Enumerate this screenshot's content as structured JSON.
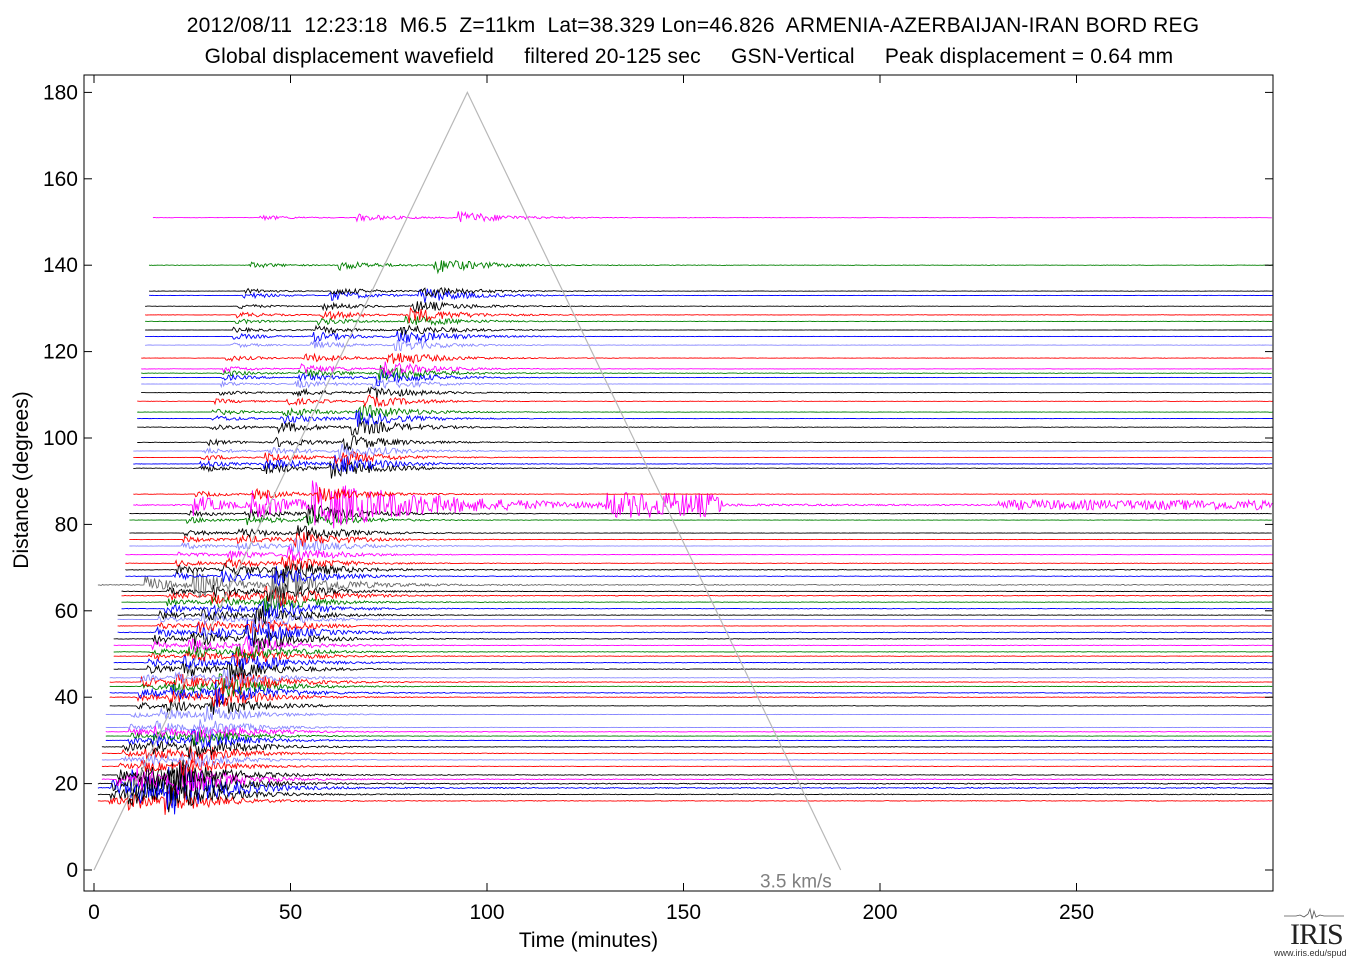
{
  "title_line1": "2012/08/11  12:23:18  M6.5  Z=11km  Lat=38.329 Lon=46.826  ARMENIA-AZERBAIJAN-IRAN BORD REG",
  "title_line2": "Global displacement wavefield     filtered 20-125 sec     GSN-Vertical     Peak displacement = 0.64 mm",
  "logo": {
    "word": "IRIS",
    "url": "www.iris.edu/spud"
  },
  "chart_data": {
    "type": "line",
    "xlabel": "Time (minutes)",
    "ylabel": "Distance (degrees)",
    "xlim": [
      -3,
      300
    ],
    "ylim": [
      -5,
      185
    ],
    "xticks": [
      0,
      50,
      100,
      150,
      200,
      250
    ],
    "yticks": [
      0,
      20,
      40,
      60,
      80,
      100,
      120,
      140,
      160,
      180
    ],
    "grid": false,
    "annotation": {
      "text": "3.5 km/s",
      "x": 200,
      "y": -2
    },
    "reference_line": {
      "label": "3.5 km/s",
      "points": [
        [
          0,
          0
        ],
        [
          95,
          180
        ],
        [
          190,
          0
        ]
      ]
    },
    "trace_colors": [
      "#000000",
      "#ff0000",
      "#0000ff",
      "#008000",
      "#ff00ff",
      "#8888ff",
      "#6a6a6a"
    ],
    "traces": [
      {
        "dist": 16,
        "color": "#ff0000",
        "start": 1,
        "amp": 0.8
      },
      {
        "dist": 17.5,
        "color": "#000000",
        "start": 1,
        "amp": 1.0
      },
      {
        "dist": 19,
        "color": "#0000ff",
        "start": 1,
        "amp": 1.5
      },
      {
        "dist": 20,
        "color": "#000000",
        "start": 1,
        "amp": 1.2
      },
      {
        "dist": 21,
        "color": "#ff00ff",
        "start": 2,
        "amp": 1.0
      },
      {
        "dist": 22,
        "color": "#000000",
        "start": 2,
        "amp": 0.9
      },
      {
        "dist": 24,
        "color": "#ff0000",
        "start": 2,
        "amp": 0.5
      },
      {
        "dist": 25.5,
        "color": "#8888ff",
        "start": 2,
        "amp": 0.5
      },
      {
        "dist": 27,
        "color": "#ff0000",
        "start": 2,
        "amp": 0.6
      },
      {
        "dist": 28.5,
        "color": "#000000",
        "start": 2,
        "amp": 0.7
      },
      {
        "dist": 30,
        "color": "#0000ff",
        "start": 3,
        "amp": 0.6
      },
      {
        "dist": 31,
        "color": "#008000",
        "start": 3,
        "amp": 0.5
      },
      {
        "dist": 32,
        "color": "#ff00ff",
        "start": 3,
        "amp": 0.6
      },
      {
        "dist": 33,
        "color": "#8888ff",
        "start": 3,
        "amp": 0.5
      },
      {
        "dist": 36,
        "color": "#8888ff",
        "start": 3,
        "amp": 0.5
      },
      {
        "dist": 38,
        "color": "#000000",
        "start": 4,
        "amp": 0.6
      },
      {
        "dist": 40,
        "color": "#ff0000",
        "start": 4,
        "amp": 0.6
      },
      {
        "dist": 41,
        "color": "#0000ff",
        "start": 4,
        "amp": 0.8
      },
      {
        "dist": 42.5,
        "color": "#008000",
        "start": 4,
        "amp": 0.7
      },
      {
        "dist": 43.5,
        "color": "#ff0000",
        "start": 4,
        "amp": 0.8
      },
      {
        "dist": 44.5,
        "color": "#8888ff",
        "start": 4,
        "amp": 0.5
      },
      {
        "dist": 46.5,
        "color": "#000000",
        "start": 5,
        "amp": 0.7
      },
      {
        "dist": 48,
        "color": "#0000ff",
        "start": 5,
        "amp": 0.7
      },
      {
        "dist": 49.5,
        "color": "#ff0000",
        "start": 5,
        "amp": 0.6
      },
      {
        "dist": 50.5,
        "color": "#008000",
        "start": 5,
        "amp": 0.6
      },
      {
        "dist": 52,
        "color": "#ff00ff",
        "start": 5,
        "amp": 0.6
      },
      {
        "dist": 53.5,
        "color": "#000000",
        "start": 5,
        "amp": 0.8
      },
      {
        "dist": 55,
        "color": "#0000ff",
        "start": 6,
        "amp": 0.8
      },
      {
        "dist": 56.5,
        "color": "#ff0000",
        "start": 6,
        "amp": 0.6
      },
      {
        "dist": 58,
        "color": "#8888ff",
        "start": 6,
        "amp": 0.5
      },
      {
        "dist": 59,
        "color": "#000000",
        "start": 6,
        "amp": 0.6
      },
      {
        "dist": 60.5,
        "color": "#0000ff",
        "start": 7,
        "amp": 0.7
      },
      {
        "dist": 62,
        "color": "#008000",
        "start": 7,
        "amp": 0.6
      },
      {
        "dist": 63.5,
        "color": "#ff0000",
        "start": 7,
        "amp": 0.8
      },
      {
        "dist": 64.5,
        "color": "#000000",
        "start": 7,
        "amp": 0.6
      },
      {
        "dist": 66,
        "color": "#6a6a6a",
        "start": 1,
        "amp": 1.3
      },
      {
        "dist": 68,
        "color": "#0000ff",
        "start": 8,
        "amp": 0.6
      },
      {
        "dist": 69.5,
        "color": "#000000",
        "start": 8,
        "amp": 0.7
      },
      {
        "dist": 71,
        "color": "#ff0000",
        "start": 8,
        "amp": 0.5
      },
      {
        "dist": 73,
        "color": "#ff00ff",
        "start": 8,
        "amp": 0.5
      },
      {
        "dist": 75,
        "color": "#8888ff",
        "start": 9,
        "amp": 0.5
      },
      {
        "dist": 76.5,
        "color": "#ff0000",
        "start": 9,
        "amp": 0.5
      },
      {
        "dist": 78,
        "color": "#000000",
        "start": 9,
        "amp": 0.5
      },
      {
        "dist": 81,
        "color": "#008000",
        "start": 9,
        "amp": 0.5
      },
      {
        "dist": 82.5,
        "color": "#000000",
        "start": 9,
        "amp": 0.6
      },
      {
        "dist": 84.5,
        "color": "#ff00ff",
        "start": 10,
        "amp": 1.6
      },
      {
        "dist": 87,
        "color": "#ff0000",
        "start": 10,
        "amp": 0.5
      },
      {
        "dist": 93,
        "color": "#000000",
        "start": 10,
        "amp": 0.6
      },
      {
        "dist": 94,
        "color": "#0000ff",
        "start": 10,
        "amp": 0.6
      },
      {
        "dist": 95.5,
        "color": "#ff0000",
        "start": 10,
        "amp": 0.5
      },
      {
        "dist": 97,
        "color": "#8888ff",
        "start": 10,
        "amp": 0.5
      },
      {
        "dist": 99,
        "color": "#000000",
        "start": 11,
        "amp": 0.5
      },
      {
        "dist": 102.5,
        "color": "#000000",
        "start": 11,
        "amp": 0.6
      },
      {
        "dist": 104.5,
        "color": "#0000ff",
        "start": 11,
        "amp": 0.5
      },
      {
        "dist": 106,
        "color": "#008000",
        "start": 11,
        "amp": 0.5
      },
      {
        "dist": 108.5,
        "color": "#ff0000",
        "start": 11,
        "amp": 0.4
      },
      {
        "dist": 110.5,
        "color": "#000000",
        "start": 12,
        "amp": 0.4
      },
      {
        "dist": 112.5,
        "color": "#8888ff",
        "start": 12,
        "amp": 0.4
      },
      {
        "dist": 114,
        "color": "#0000ff",
        "start": 12,
        "amp": 0.5
      },
      {
        "dist": 115,
        "color": "#008000",
        "start": 12,
        "amp": 0.5
      },
      {
        "dist": 116,
        "color": "#ff00ff",
        "start": 12,
        "amp": 0.5
      },
      {
        "dist": 118.5,
        "color": "#ff0000",
        "start": 12,
        "amp": 0.5
      },
      {
        "dist": 121.5,
        "color": "#8888ff",
        "start": 13,
        "amp": 0.4
      },
      {
        "dist": 123.5,
        "color": "#0000ff",
        "start": 13,
        "amp": 0.5
      },
      {
        "dist": 125,
        "color": "#000000",
        "start": 13,
        "amp": 0.4
      },
      {
        "dist": 127,
        "color": "#008000",
        "start": 13,
        "amp": 0.4
      },
      {
        "dist": 128.5,
        "color": "#ff0000",
        "start": 13,
        "amp": 0.5
      },
      {
        "dist": 130.5,
        "color": "#000000",
        "start": 13,
        "amp": 0.4
      },
      {
        "dist": 133,
        "color": "#0000ff",
        "start": 14,
        "amp": 0.5
      },
      {
        "dist": 134,
        "color": "#000000",
        "start": 14,
        "amp": 0.4
      },
      {
        "dist": 140,
        "color": "#008000",
        "start": 14,
        "amp": 0.5
      },
      {
        "dist": 151,
        "color": "#ff00ff",
        "start": 15,
        "amp": 0.4
      }
    ]
  }
}
